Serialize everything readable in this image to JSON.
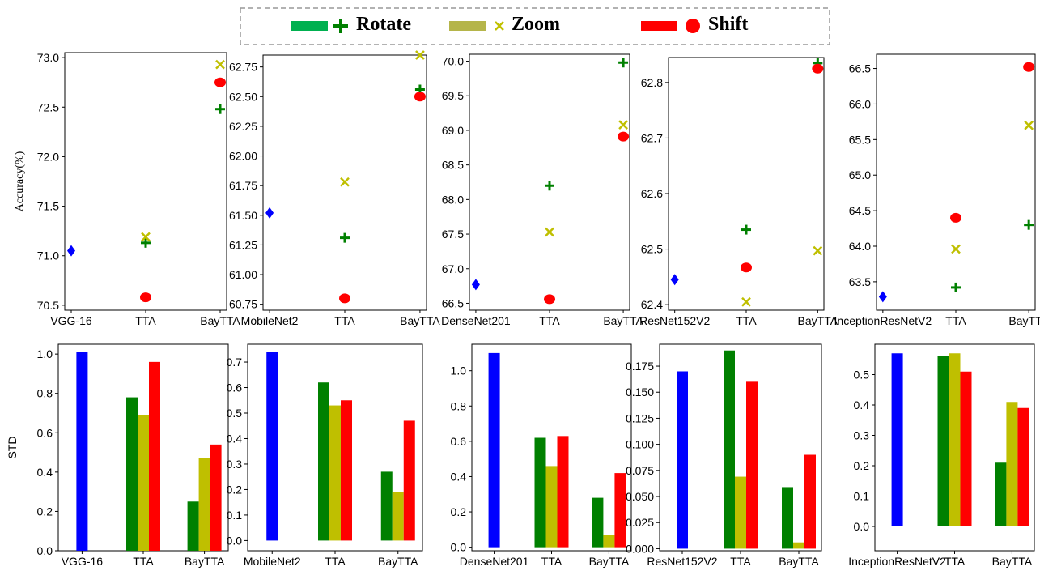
{
  "legend": {
    "items": [
      {
        "label": "Rotate",
        "color": "#00b050",
        "marker_color": "#008000",
        "marker": "plus"
      },
      {
        "label": "Zoom",
        "color": "#b5b54a",
        "marker_color": "#c0c000",
        "marker": "cross"
      },
      {
        "label": "Shift",
        "color": "#ff0000",
        "marker_color": "#ff0000",
        "marker": "circle"
      }
    ]
  },
  "colors": {
    "baseline": "#0000ff",
    "rotate": "#008000",
    "zoom": "#bfbf00",
    "shift": "#ff0000"
  },
  "chart_data": [
    {
      "type": "scatter",
      "row": "top",
      "ylabel": "Accuracy(%)",
      "categories": [
        "VGG-16",
        "TTA",
        "BayTTA"
      ],
      "ylim": [
        70.45,
        73.05
      ],
      "yticks": [
        70.5,
        71.0,
        71.5,
        72.0,
        72.5,
        73.0
      ],
      "ytick_labels": [
        "70.5",
        "71.0",
        "71.5",
        "72.0",
        "72.5",
        "73.0"
      ],
      "baseline": 71.05,
      "series": [
        {
          "name": "Rotate",
          "values": [
            null,
            71.13,
            72.48
          ]
        },
        {
          "name": "Zoom",
          "values": [
            null,
            71.19,
            72.93
          ]
        },
        {
          "name": "Shift",
          "values": [
            null,
            70.58,
            72.75
          ]
        }
      ]
    },
    {
      "type": "scatter",
      "row": "top",
      "ylabel": "",
      "categories": [
        "MobileNet2",
        "TTA",
        "BayTTA"
      ],
      "ylim": [
        60.7,
        62.85
      ],
      "yticks": [
        60.75,
        61.0,
        61.25,
        61.5,
        61.75,
        62.0,
        62.25,
        62.5,
        62.75
      ],
      "ytick_labels": [
        "60.75",
        "61.00",
        "61.25",
        "61.50",
        "61.75",
        "62.00",
        "62.25",
        "62.50",
        "62.75"
      ],
      "baseline": 61.52,
      "series": [
        {
          "name": "Rotate",
          "values": [
            null,
            61.31,
            62.56
          ]
        },
        {
          "name": "Zoom",
          "values": [
            null,
            61.78,
            62.85
          ]
        },
        {
          "name": "Shift",
          "values": [
            null,
            60.8,
            62.5
          ]
        }
      ]
    },
    {
      "type": "scatter",
      "row": "top",
      "ylabel": "",
      "categories": [
        "DenseNet201",
        "TTA",
        "BayTTA"
      ],
      "ylim": [
        66.4,
        70.1
      ],
      "yticks": [
        66.5,
        67.0,
        67.5,
        68.0,
        68.5,
        69.0,
        69.5,
        70.0
      ],
      "ytick_labels": [
        "66.5",
        "67.0",
        "67.5",
        "68.0",
        "68.5",
        "69.0",
        "69.5",
        "70.0"
      ],
      "baseline": 66.77,
      "series": [
        {
          "name": "Rotate",
          "values": [
            null,
            68.2,
            69.98
          ]
        },
        {
          "name": "Zoom",
          "values": [
            null,
            67.53,
            69.08
          ]
        },
        {
          "name": "Shift",
          "values": [
            null,
            66.56,
            68.91
          ]
        }
      ]
    },
    {
      "type": "scatter",
      "row": "top",
      "ylabel": "",
      "categories": [
        "ResNet152V2",
        "TTA",
        "BayTTA"
      ],
      "ylim": [
        62.39,
        62.845
      ],
      "yticks": [
        62.4,
        62.5,
        62.6,
        62.7,
        62.8
      ],
      "ytick_labels": [
        "62.4",
        "62.5",
        "62.6",
        "62.7",
        "62.8"
      ],
      "baseline": 62.445,
      "series": [
        {
          "name": "Rotate",
          "values": [
            null,
            62.535,
            62.835
          ]
        },
        {
          "name": "Zoom",
          "values": [
            null,
            62.405,
            62.497
          ]
        },
        {
          "name": "Shift",
          "values": [
            null,
            62.467,
            62.825
          ]
        }
      ]
    },
    {
      "type": "scatter",
      "row": "top",
      "ylabel": "",
      "categories": [
        "InceptionResNetV2",
        "TTA",
        "BayTTA"
      ],
      "ylim": [
        63.1,
        66.7
      ],
      "yticks": [
        63.5,
        64.0,
        64.5,
        65.0,
        65.5,
        66.0,
        66.5
      ],
      "ytick_labels": [
        "63.5",
        "64.0",
        "64.5",
        "65.0",
        "65.5",
        "66.0",
        "66.5"
      ],
      "baseline": 63.29,
      "series": [
        {
          "name": "Rotate",
          "values": [
            null,
            63.42,
            64.3
          ]
        },
        {
          "name": "Zoom",
          "values": [
            null,
            63.96,
            65.7
          ]
        },
        {
          "name": "Shift",
          "values": [
            null,
            64.4,
            66.52
          ]
        }
      ]
    },
    {
      "type": "bar",
      "row": "bottom",
      "ylabel": "STD",
      "categories": [
        "VGG-16",
        "TTA",
        "BayTTA"
      ],
      "ylim": [
        0,
        1.05
      ],
      "yticks": [
        0.0,
        0.2,
        0.4,
        0.6,
        0.8,
        1.0
      ],
      "ytick_labels": [
        "0.0",
        "0.2",
        "0.4",
        "0.6",
        "0.8",
        "1.0"
      ],
      "baseline": 1.01,
      "series": [
        {
          "name": "Rotate",
          "values": [
            null,
            0.78,
            0.25
          ]
        },
        {
          "name": "Zoom",
          "values": [
            null,
            0.69,
            0.47
          ]
        },
        {
          "name": "Shift",
          "values": [
            null,
            0.96,
            0.54
          ]
        }
      ]
    },
    {
      "type": "bar",
      "row": "bottom",
      "ylabel": "",
      "categories": [
        "MobileNet2",
        "TTA",
        "BayTTA"
      ],
      "ylim": [
        -0.04,
        0.77
      ],
      "yticks": [
        0.0,
        0.1,
        0.2,
        0.3,
        0.4,
        0.5,
        0.6,
        0.7
      ],
      "ytick_labels": [
        "0.0",
        "0.1",
        "0.2",
        "0.3",
        "0.4",
        "0.5",
        "0.6",
        "0.7"
      ],
      "baseline": 0.74,
      "series": [
        {
          "name": "Rotate",
          "values": [
            null,
            0.62,
            0.27
          ]
        },
        {
          "name": "Zoom",
          "values": [
            null,
            0.53,
            0.19
          ]
        },
        {
          "name": "Shift",
          "values": [
            null,
            0.55,
            0.47
          ]
        }
      ]
    },
    {
      "type": "bar",
      "row": "bottom",
      "ylabel": "",
      "categories": [
        "DenseNet201",
        "TTA",
        "BayTTA"
      ],
      "ylim": [
        -0.02,
        1.15
      ],
      "yticks": [
        0.0,
        0.2,
        0.4,
        0.6,
        0.8,
        1.0
      ],
      "ytick_labels": [
        "0.0",
        "0.2",
        "0.4",
        "0.6",
        "0.8",
        "1.0"
      ],
      "baseline": 1.1,
      "series": [
        {
          "name": "Rotate",
          "values": [
            null,
            0.62,
            0.28
          ]
        },
        {
          "name": "Zoom",
          "values": [
            null,
            0.46,
            0.07
          ]
        },
        {
          "name": "Shift",
          "values": [
            null,
            0.63,
            0.42
          ]
        }
      ]
    },
    {
      "type": "bar",
      "row": "bottom",
      "ylabel": "",
      "categories": [
        "ResNet152V2",
        "TTA",
        "BayTTA"
      ],
      "ylim": [
        -0.002,
        0.196
      ],
      "yticks": [
        0.0,
        0.025,
        0.05,
        0.075,
        0.1,
        0.125,
        0.15,
        0.175
      ],
      "ytick_labels": [
        "0.000",
        "0.025",
        "0.050",
        "0.075",
        "0.100",
        "0.125",
        "0.150",
        "0.175"
      ],
      "baseline": 0.17,
      "series": [
        {
          "name": "Rotate",
          "values": [
            null,
            0.19,
            0.059
          ]
        },
        {
          "name": "Zoom",
          "values": [
            null,
            0.069,
            0.006
          ]
        },
        {
          "name": "Shift",
          "values": [
            null,
            0.16,
            0.09
          ]
        }
      ]
    },
    {
      "type": "bar",
      "row": "bottom",
      "ylabel": "",
      "categories": [
        "InceptionResNetV2",
        "TTA",
        "BayTTA"
      ],
      "ylim": [
        -0.08,
        0.6
      ],
      "yticks": [
        0.0,
        0.1,
        0.2,
        0.3,
        0.4,
        0.5
      ],
      "ytick_labels": [
        "0.0",
        "0.1",
        "0.2",
        "0.3",
        "0.4",
        "0.5"
      ],
      "baseline": 0.57,
      "series": [
        {
          "name": "Rotate",
          "values": [
            null,
            0.56,
            0.21
          ]
        },
        {
          "name": "Zoom",
          "values": [
            null,
            0.57,
            0.41
          ]
        },
        {
          "name": "Shift",
          "values": [
            null,
            0.51,
            0.39
          ]
        }
      ]
    }
  ]
}
